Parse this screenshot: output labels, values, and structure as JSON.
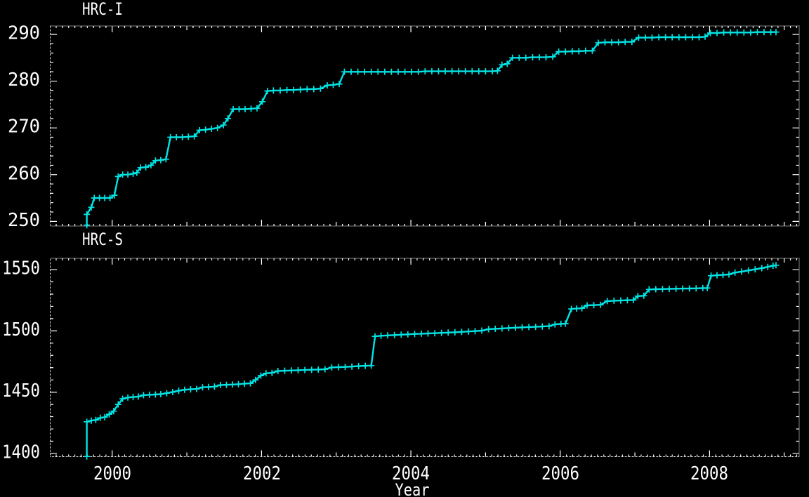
{
  "figure": {
    "background": "#000000",
    "axis_color": "#ffffff",
    "series_color": "#00e5e5"
  },
  "chart_data": [
    {
      "type": "line",
      "title": "HRC-I",
      "marker": "plus",
      "legend": "none",
      "grid": false,
      "xlim": [
        1999.17,
        2009.2
      ],
      "ylim": [
        249.0,
        291.8
      ],
      "xticks": [
        2000,
        2002,
        2004,
        2006,
        2008
      ],
      "yticks": [
        250,
        260,
        270,
        280,
        290
      ],
      "points": [
        [
          1999.66,
          249.2
        ],
        [
          1999.66,
          251.5
        ],
        [
          1999.72,
          253.0
        ],
        [
          1999.76,
          255.0
        ],
        [
          1999.83,
          255.0
        ],
        [
          1999.9,
          255.0
        ],
        [
          1999.97,
          255.0
        ],
        [
          2000.03,
          255.6
        ],
        [
          2000.08,
          259.6
        ],
        [
          2000.14,
          260.0
        ],
        [
          2000.21,
          260.0
        ],
        [
          2000.28,
          260.2
        ],
        [
          2000.33,
          260.4
        ],
        [
          2000.38,
          261.5
        ],
        [
          2000.45,
          261.6
        ],
        [
          2000.52,
          262.0
        ],
        [
          2000.58,
          263.0
        ],
        [
          2000.65,
          263.1
        ],
        [
          2000.72,
          263.3
        ],
        [
          2000.78,
          268.0
        ],
        [
          2000.86,
          268.0
        ],
        [
          2000.94,
          268.0
        ],
        [
          2001.02,
          268.1
        ],
        [
          2001.1,
          268.2
        ],
        [
          2001.17,
          269.5
        ],
        [
          2001.25,
          269.6
        ],
        [
          2001.33,
          269.8
        ],
        [
          2001.41,
          270.0
        ],
        [
          2001.49,
          270.6
        ],
        [
          2001.55,
          272.0
        ],
        [
          2001.62,
          274.0
        ],
        [
          2001.7,
          274.0
        ],
        [
          2001.78,
          274.0
        ],
        [
          2001.86,
          274.1
        ],
        [
          2001.94,
          274.2
        ],
        [
          2002.01,
          275.6
        ],
        [
          2002.08,
          277.9
        ],
        [
          2002.16,
          278.0
        ],
        [
          2002.25,
          278.0
        ],
        [
          2002.34,
          278.1
        ],
        [
          2002.43,
          278.1
        ],
        [
          2002.52,
          278.2
        ],
        [
          2002.61,
          278.3
        ],
        [
          2002.7,
          278.3
        ],
        [
          2002.79,
          278.4
        ],
        [
          2002.88,
          279.1
        ],
        [
          2002.96,
          279.2
        ],
        [
          2003.04,
          279.4
        ],
        [
          2003.11,
          282.0
        ],
        [
          2003.2,
          282.0
        ],
        [
          2003.29,
          282.0
        ],
        [
          2003.38,
          282.0
        ],
        [
          2003.47,
          282.0
        ],
        [
          2003.56,
          282.0
        ],
        [
          2003.65,
          282.0
        ],
        [
          2003.74,
          282.0
        ],
        [
          2003.83,
          282.0
        ],
        [
          2003.92,
          282.0
        ],
        [
          2004.01,
          282.0
        ],
        [
          2004.1,
          282.0
        ],
        [
          2004.19,
          282.1
        ],
        [
          2004.28,
          282.1
        ],
        [
          2004.37,
          282.1
        ],
        [
          2004.46,
          282.1
        ],
        [
          2004.55,
          282.1
        ],
        [
          2004.64,
          282.1
        ],
        [
          2004.73,
          282.1
        ],
        [
          2004.82,
          282.1
        ],
        [
          2004.91,
          282.1
        ],
        [
          2005.0,
          282.1
        ],
        [
          2005.09,
          282.1
        ],
        [
          2005.16,
          282.2
        ],
        [
          2005.22,
          283.5
        ],
        [
          2005.29,
          283.7
        ],
        [
          2005.36,
          285.0
        ],
        [
          2005.45,
          285.0
        ],
        [
          2005.54,
          285.0
        ],
        [
          2005.63,
          285.1
        ],
        [
          2005.72,
          285.1
        ],
        [
          2005.81,
          285.1
        ],
        [
          2005.9,
          285.2
        ],
        [
          2005.98,
          286.3
        ],
        [
          2006.07,
          286.3
        ],
        [
          2006.16,
          286.4
        ],
        [
          2006.25,
          286.4
        ],
        [
          2006.34,
          286.5
        ],
        [
          2006.43,
          286.5
        ],
        [
          2006.51,
          288.2
        ],
        [
          2006.6,
          288.3
        ],
        [
          2006.69,
          288.3
        ],
        [
          2006.78,
          288.3
        ],
        [
          2006.87,
          288.4
        ],
        [
          2006.96,
          288.4
        ],
        [
          2007.05,
          289.3
        ],
        [
          2007.14,
          289.3
        ],
        [
          2007.23,
          289.3
        ],
        [
          2007.32,
          289.4
        ],
        [
          2007.41,
          289.4
        ],
        [
          2007.5,
          289.4
        ],
        [
          2007.59,
          289.4
        ],
        [
          2007.68,
          289.4
        ],
        [
          2007.77,
          289.4
        ],
        [
          2007.86,
          289.4
        ],
        [
          2007.94,
          289.5
        ],
        [
          2008.01,
          290.3
        ],
        [
          2008.1,
          290.3
        ],
        [
          2008.19,
          290.4
        ],
        [
          2008.28,
          290.4
        ],
        [
          2008.37,
          290.4
        ],
        [
          2008.46,
          290.4
        ],
        [
          2008.55,
          290.4
        ],
        [
          2008.64,
          290.5
        ],
        [
          2008.73,
          290.5
        ],
        [
          2008.82,
          290.5
        ],
        [
          2008.89,
          290.5
        ]
      ]
    },
    {
      "type": "line",
      "title": "HRC-S",
      "marker": "plus",
      "legend": "none",
      "grid": false,
      "xlabel": "Year",
      "xlim": [
        1999.17,
        2009.2
      ],
      "ylim": [
        1397.4,
        1559.2
      ],
      "xticks": [
        2000,
        2002,
        2004,
        2006,
        2008
      ],
      "yticks": [
        1400,
        1450,
        1500,
        1550
      ],
      "points": [
        [
          1999.66,
          1397.6
        ],
        [
          1999.66,
          1425.8
        ],
        [
          1999.72,
          1426.8
        ],
        [
          1999.78,
          1427.3
        ],
        [
          1999.84,
          1429.0
        ],
        [
          1999.9,
          1429.6
        ],
        [
          1999.96,
          1432.0
        ],
        [
          2000.02,
          1434.5
        ],
        [
          2000.08,
          1440.0
        ],
        [
          2000.14,
          1444.6
        ],
        [
          2000.21,
          1445.6
        ],
        [
          2000.28,
          1446.0
        ],
        [
          2000.35,
          1446.4
        ],
        [
          2000.42,
          1447.6
        ],
        [
          2000.5,
          1447.9
        ],
        [
          2000.58,
          1448.1
        ],
        [
          2000.65,
          1448.4
        ],
        [
          2000.73,
          1449.2
        ],
        [
          2000.81,
          1450.1
        ],
        [
          2000.89,
          1451.2
        ],
        [
          2000.97,
          1452.0
        ],
        [
          2001.05,
          1452.3
        ],
        [
          2001.13,
          1452.6
        ],
        [
          2001.21,
          1454.0
        ],
        [
          2001.29,
          1454.2
        ],
        [
          2001.37,
          1454.5
        ],
        [
          2001.45,
          1455.8
        ],
        [
          2001.53,
          1456.0
        ],
        [
          2001.61,
          1456.2
        ],
        [
          2001.69,
          1456.5
        ],
        [
          2001.77,
          1456.9
        ],
        [
          2001.85,
          1457.2
        ],
        [
          2001.92,
          1460.0
        ],
        [
          2001.99,
          1463.5
        ],
        [
          2002.06,
          1465.4
        ],
        [
          2002.14,
          1465.7
        ],
        [
          2002.22,
          1467.3
        ],
        [
          2002.31,
          1467.5
        ],
        [
          2002.4,
          1467.7
        ],
        [
          2002.49,
          1467.9
        ],
        [
          2002.58,
          1468.1
        ],
        [
          2002.67,
          1468.3
        ],
        [
          2002.76,
          1468.5
        ],
        [
          2002.85,
          1468.7
        ],
        [
          2002.94,
          1470.2
        ],
        [
          2003.03,
          1470.4
        ],
        [
          2003.12,
          1470.6
        ],
        [
          2003.21,
          1470.9
        ],
        [
          2003.3,
          1471.3
        ],
        [
          2003.39,
          1471.5
        ],
        [
          2003.47,
          1471.7
        ],
        [
          2003.52,
          1495.5
        ],
        [
          2003.6,
          1496.0
        ],
        [
          2003.69,
          1496.3
        ],
        [
          2003.78,
          1496.6
        ],
        [
          2003.87,
          1496.9
        ],
        [
          2003.96,
          1497.2
        ],
        [
          2004.05,
          1497.5
        ],
        [
          2004.14,
          1497.7
        ],
        [
          2004.23,
          1497.9
        ],
        [
          2004.32,
          1498.1
        ],
        [
          2004.41,
          1498.4
        ],
        [
          2004.5,
          1498.6
        ],
        [
          2004.59,
          1498.9
        ],
        [
          2004.68,
          1499.2
        ],
        [
          2004.77,
          1499.5
        ],
        [
          2004.86,
          1499.8
        ],
        [
          2004.95,
          1500.2
        ],
        [
          2005.04,
          1501.4
        ],
        [
          2005.13,
          1501.7
        ],
        [
          2005.22,
          1502.0
        ],
        [
          2005.31,
          1502.3
        ],
        [
          2005.4,
          1502.6
        ],
        [
          2005.49,
          1502.9
        ],
        [
          2005.58,
          1503.1
        ],
        [
          2005.67,
          1503.3
        ],
        [
          2005.76,
          1503.6
        ],
        [
          2005.85,
          1503.9
        ],
        [
          2005.93,
          1505.3
        ],
        [
          2006.01,
          1505.7
        ],
        [
          2006.07,
          1506.0
        ],
        [
          2006.15,
          1517.9
        ],
        [
          2006.22,
          1518.2
        ],
        [
          2006.29,
          1518.5
        ],
        [
          2006.36,
          1520.8
        ],
        [
          2006.45,
          1521.0
        ],
        [
          2006.54,
          1521.3
        ],
        [
          2006.63,
          1524.3
        ],
        [
          2006.72,
          1524.6
        ],
        [
          2006.81,
          1524.8
        ],
        [
          2006.9,
          1525.0
        ],
        [
          2006.98,
          1525.2
        ],
        [
          2007.04,
          1528.4
        ],
        [
          2007.12,
          1528.7
        ],
        [
          2007.19,
          1533.8
        ],
        [
          2007.28,
          1534.0
        ],
        [
          2007.37,
          1534.1
        ],
        [
          2007.46,
          1534.3
        ],
        [
          2007.55,
          1534.4
        ],
        [
          2007.64,
          1534.5
        ],
        [
          2007.73,
          1534.6
        ],
        [
          2007.82,
          1534.7
        ],
        [
          2007.91,
          1534.9
        ],
        [
          2007.97,
          1535.0
        ],
        [
          2008.02,
          1545.0
        ],
        [
          2008.1,
          1545.4
        ],
        [
          2008.18,
          1545.7
        ],
        [
          2008.26,
          1546.0
        ],
        [
          2008.34,
          1547.6
        ],
        [
          2008.43,
          1548.4
        ],
        [
          2008.52,
          1549.3
        ],
        [
          2008.61,
          1550.2
        ],
        [
          2008.7,
          1551.2
        ],
        [
          2008.78,
          1552.2
        ],
        [
          2008.85,
          1553.2
        ],
        [
          2008.89,
          1553.6
        ]
      ]
    }
  ]
}
